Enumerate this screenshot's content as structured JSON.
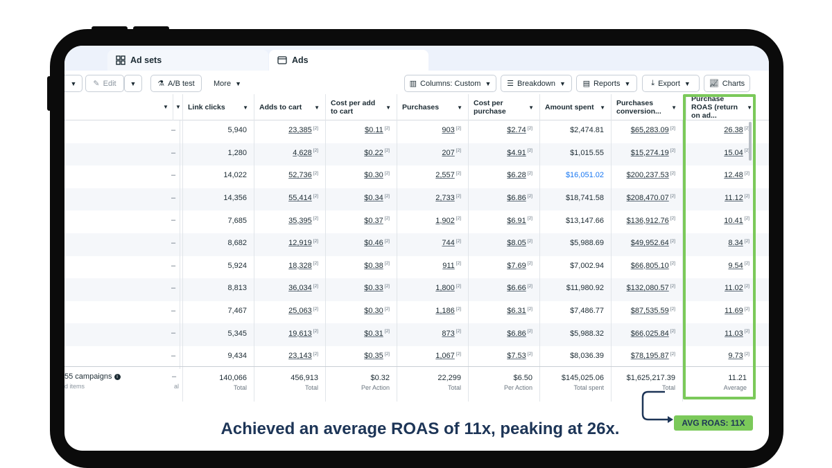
{
  "tabs": [
    {
      "label": "Ad sets"
    },
    {
      "label": "Ads"
    }
  ],
  "toolbar": {
    "edit": "Edit",
    "ab_test": "A/B test",
    "more": "More",
    "columns": "Columns: Custom",
    "breakdown": "Breakdown",
    "reports": "Reports",
    "export": "Export",
    "charts": "Charts"
  },
  "headers": {
    "link_clicks": "Link clicks",
    "adds_to_cart": "Adds to cart",
    "cost_per_add_to_cart": "Cost per add to cart",
    "purchases": "Purchases",
    "cost_per_purchase": "Cost per purchase",
    "amount_spent": "Amount spent",
    "purchases_conversion": "Purchases conversion...",
    "purchase_roas": "Purchase ROAS (return on ad..."
  },
  "dash": "–",
  "footnote": "[2]",
  "rows": [
    {
      "link_clicks": "5,940",
      "adds_to_cart": "23,385",
      "cpatc": "$0.11",
      "purchases": "903",
      "cpp": "$2.74",
      "amount": "$2,474.81",
      "conv": "$65,283.09",
      "roas": "26.38"
    },
    {
      "link_clicks": "1,280",
      "adds_to_cart": "4,628",
      "cpatc": "$0.22",
      "purchases": "207",
      "cpp": "$4.91",
      "amount": "$1,015.55",
      "conv": "$15,274.19",
      "roas": "15.04"
    },
    {
      "link_clicks": "14,022",
      "adds_to_cart": "52,736",
      "cpatc": "$0.30",
      "purchases": "2,557",
      "cpp": "$6.28",
      "amount": "$16,051.02",
      "conv": "$200,237.53",
      "roas": "12.48"
    },
    {
      "link_clicks": "14,356",
      "adds_to_cart": "55,414",
      "cpatc": "$0.34",
      "purchases": "2,733",
      "cpp": "$6.86",
      "amount": "$18,741.58",
      "conv": "$208,470.07",
      "roas": "11.12"
    },
    {
      "link_clicks": "7,685",
      "adds_to_cart": "35,395",
      "cpatc": "$0.37",
      "purchases": "1,902",
      "cpp": "$6.91",
      "amount": "$13,147.66",
      "conv": "$136,912.76",
      "roas": "10.41"
    },
    {
      "link_clicks": "8,682",
      "adds_to_cart": "12,919",
      "cpatc": "$0.46",
      "purchases": "744",
      "cpp": "$8.05",
      "amount": "$5,988.69",
      "conv": "$49,952.64",
      "roas": "8.34"
    },
    {
      "link_clicks": "5,924",
      "adds_to_cart": "18,328",
      "cpatc": "$0.38",
      "purchases": "911",
      "cpp": "$7.69",
      "amount": "$7,002.94",
      "conv": "$66,805.10",
      "roas": "9.54"
    },
    {
      "link_clicks": "8,813",
      "adds_to_cart": "36,034",
      "cpatc": "$0.33",
      "purchases": "1,800",
      "cpp": "$6.66",
      "amount": "$11,980.92",
      "conv": "$132,080.57",
      "roas": "11.02"
    },
    {
      "link_clicks": "7,467",
      "adds_to_cart": "25,063",
      "cpatc": "$0.30",
      "purchases": "1,186",
      "cpp": "$6.31",
      "amount": "$7,486.77",
      "conv": "$87,535.59",
      "roas": "11.69"
    },
    {
      "link_clicks": "5,345",
      "adds_to_cart": "19,613",
      "cpatc": "$0.31",
      "purchases": "873",
      "cpp": "$6.86",
      "amount": "$5,988.32",
      "conv": "$66,025.84",
      "roas": "11.03"
    },
    {
      "link_clicks": "9,434",
      "adds_to_cart": "23,143",
      "cpatc": "$0.35",
      "purchases": "1,067",
      "cpp": "$7.53",
      "amount": "$8,036.39",
      "conv": "$78,195.87",
      "roas": "9.73"
    }
  ],
  "totals": {
    "campaigns": "55 campaigns",
    "campaigns_sub": "d items",
    "al": "al",
    "link_clicks": "140,066",
    "link_clicks_l": "Total",
    "adds_to_cart": "456,913",
    "adds_to_cart_l": "Total",
    "cpatc": "$0.32",
    "cpatc_l": "Per Action",
    "purchases": "22,299",
    "purchases_l": "Total",
    "cpp": "$6.50",
    "cpp_l": "Per Action",
    "amount": "$145,025.06",
    "amount_l": "Total spent",
    "conv": "$1,625,217.39",
    "conv_l": "Total",
    "roas": "11.21",
    "roas_l": "Average"
  },
  "caption": "Achieved an average ROAS of 11x, peaking at 26x.",
  "badge": "AVG ROAS: 11X",
  "colors": {
    "highlight": "#7bc95a",
    "caption": "#1d3557",
    "link_blue": "#1877f2"
  }
}
